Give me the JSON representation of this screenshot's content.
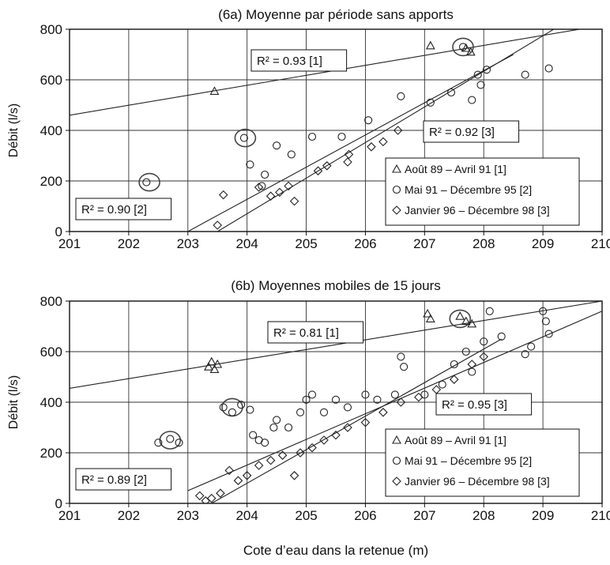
{
  "xlabel": "Cote d’eau dans la retenue (m)",
  "chart_data": [
    {
      "type": "scatter",
      "title": "(6a) Moyenne par période sans apports",
      "ylabel": "Débit (l/s)",
      "xlim": [
        201,
        210
      ],
      "ylim": [
        0,
        800
      ],
      "xticks": [
        201,
        202,
        203,
        204,
        205,
        206,
        207,
        208,
        209,
        210
      ],
      "yticks": [
        0,
        200,
        400,
        600,
        800
      ],
      "grid": true,
      "series": [
        {
          "name": "Août 89 – Avril 91 [1]",
          "marker": "triangle",
          "points": [
            [
              203.45,
              555
            ],
            [
              207.1,
              735
            ],
            [
              207.7,
              725
            ],
            [
              207.78,
              710
            ]
          ]
        },
        {
          "name": "Mai 91 – Décembre 95 [2]",
          "marker": "circle",
          "points": [
            [
              202.3,
              195
            ],
            [
              203.95,
              370
            ],
            [
              204.05,
              265
            ],
            [
              204.25,
              180
            ],
            [
              204.3,
              225
            ],
            [
              204.5,
              340
            ],
            [
              204.75,
              305
            ],
            [
              205.1,
              375
            ],
            [
              205.6,
              375
            ],
            [
              206.05,
              440
            ],
            [
              206.6,
              535
            ],
            [
              207.1,
              510
            ],
            [
              207.45,
              550
            ],
            [
              207.65,
              730
            ],
            [
              207.8,
              520
            ],
            [
              207.9,
              620
            ],
            [
              207.95,
              580
            ],
            [
              208.05,
              640
            ],
            [
              208.7,
              620
            ],
            [
              209.1,
              645
            ]
          ]
        },
        {
          "name": "Janvier 96 – Décembre 98 [3]",
          "marker": "diamond",
          "points": [
            [
              203.5,
              25
            ],
            [
              203.6,
              145
            ],
            [
              204.2,
              175
            ],
            [
              204.4,
              140
            ],
            [
              204.55,
              155
            ],
            [
              204.7,
              180
            ],
            [
              204.8,
              120
            ],
            [
              205.2,
              240
            ],
            [
              205.35,
              260
            ],
            [
              205.7,
              275
            ],
            [
              205.72,
              305
            ],
            [
              206.1,
              335
            ],
            [
              206.3,
              355
            ],
            [
              206.55,
              400
            ]
          ]
        }
      ],
      "trendlines": [
        {
          "label": "R² = 0.93 [1]",
          "from": [
            201,
            460
          ],
          "to": [
            210,
            815
          ]
        },
        {
          "label": "R² = 0.92 [3]",
          "from": [
            203,
            0
          ],
          "to": [
            208.5,
            700
          ]
        },
        {
          "label": "R² = 0.90 [2]",
          "from": [
            203.5,
            0
          ],
          "to": [
            210,
            915
          ]
        }
      ],
      "highlights": [
        [
          202.35,
          195
        ],
        [
          203.97,
          370
        ],
        [
          207.65,
          730
        ]
      ]
    },
    {
      "type": "scatter",
      "title": "(6b) Moyennes mobiles de 15 jours",
      "ylabel": "Débit (l/s)",
      "xlim": [
        201,
        210
      ],
      "ylim": [
        0,
        800
      ],
      "xticks": [
        201,
        202,
        203,
        204,
        205,
        206,
        207,
        208,
        209,
        210
      ],
      "yticks": [
        0,
        200,
        400,
        600,
        800
      ],
      "grid": true,
      "series": [
        {
          "name": "Août 89 – Avril 91 [1]",
          "marker": "triangle",
          "points": [
            [
              203.35,
              540
            ],
            [
              203.4,
              560
            ],
            [
              203.45,
              530
            ],
            [
              203.5,
              550
            ],
            [
              207.05,
              750
            ],
            [
              207.1,
              730
            ],
            [
              207.6,
              740
            ],
            [
              207.7,
              720
            ],
            [
              207.8,
              710
            ]
          ]
        },
        {
          "name": "Mai 91 – Décembre 95 [2]",
          "marker": "circle",
          "points": [
            [
              202.5,
              240
            ],
            [
              202.7,
              255
            ],
            [
              202.85,
              240
            ],
            [
              203.6,
              380
            ],
            [
              203.75,
              360
            ],
            [
              203.9,
              390
            ],
            [
              204.05,
              370
            ],
            [
              204.1,
              270
            ],
            [
              204.2,
              250
            ],
            [
              204.3,
              240
            ],
            [
              204.45,
              300
            ],
            [
              204.5,
              330
            ],
            [
              204.7,
              300
            ],
            [
              204.9,
              360
            ],
            [
              205.0,
              410
            ],
            [
              205.1,
              430
            ],
            [
              205.3,
              360
            ],
            [
              205.5,
              410
            ],
            [
              205.7,
              380
            ],
            [
              206.0,
              430
            ],
            [
              206.2,
              410
            ],
            [
              206.5,
              430
            ],
            [
              206.6,
              580
            ],
            [
              206.65,
              540
            ],
            [
              207.0,
              430
            ],
            [
              207.3,
              470
            ],
            [
              207.5,
              550
            ],
            [
              207.7,
              600
            ],
            [
              207.8,
              520
            ],
            [
              208.0,
              640
            ],
            [
              208.1,
              760
            ],
            [
              208.3,
              660
            ],
            [
              208.7,
              590
            ],
            [
              208.8,
              620
            ],
            [
              209.0,
              760
            ],
            [
              209.1,
              670
            ],
            [
              209.05,
              720
            ]
          ]
        },
        {
          "name": "Janvier 96 – Décembre 98 [3]",
          "marker": "diamond",
          "points": [
            [
              203.2,
              30
            ],
            [
              203.3,
              10
            ],
            [
              203.4,
              20
            ],
            [
              203.55,
              40
            ],
            [
              203.7,
              130
            ],
            [
              203.85,
              90
            ],
            [
              204.0,
              110
            ],
            [
              204.2,
              150
            ],
            [
              204.4,
              170
            ],
            [
              204.6,
              190
            ],
            [
              204.8,
              110
            ],
            [
              204.9,
              200
            ],
            [
              205.1,
              220
            ],
            [
              205.3,
              250
            ],
            [
              205.5,
              270
            ],
            [
              205.7,
              300
            ],
            [
              206.0,
              320
            ],
            [
              206.3,
              360
            ],
            [
              206.6,
              400
            ],
            [
              206.9,
              420
            ],
            [
              207.2,
              450
            ],
            [
              207.5,
              490
            ],
            [
              207.8,
              550
            ],
            [
              208.0,
              580
            ]
          ]
        }
      ],
      "trendlines": [
        {
          "label": "R² = 0.81 [1]",
          "from": [
            201,
            455
          ],
          "to": [
            210,
            800
          ]
        },
        {
          "label": "R² = 0.95 [3]",
          "from": [
            203,
            50
          ],
          "to": [
            210,
            760
          ]
        },
        {
          "label": "R² = 0.89 [2]",
          "from": [
            203.4,
            0
          ],
          "to": [
            208.3,
            650
          ]
        }
      ],
      "highlights": [
        [
          202.7,
          250
        ],
        [
          203.75,
          380
        ],
        [
          207.6,
          730
        ]
      ]
    }
  ]
}
